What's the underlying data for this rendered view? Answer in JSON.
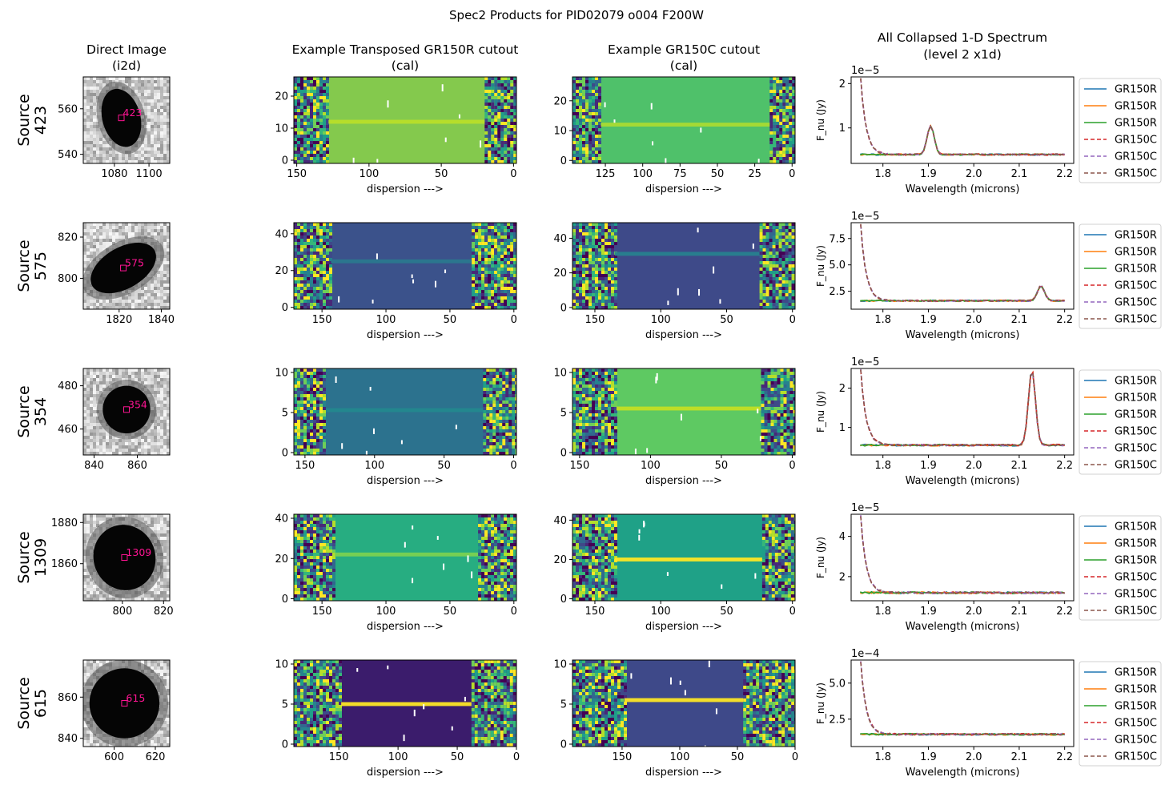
{
  "suptitle": "Spec2 Products for PID02079 o004 F200W",
  "column_titles": {
    "direct": [
      "Direct Image",
      "(i2d)"
    ],
    "row": [
      "Example Transposed GR150R cutout",
      "(cal)"
    ],
    "col": [
      "Example GR150C cutout",
      "(cal)"
    ],
    "spec": [
      "All Collapsed 1-D Spectrum",
      "(level 2 x1d)"
    ]
  },
  "colors": {
    "GR150R": [
      "#1f77b4",
      "#ff7f0e",
      "#2ca02c"
    ],
    "GR150C": [
      "#d62728",
      "#9467bd",
      "#8c564b"
    ],
    "marker": "#ff1493"
  },
  "legend_labels": [
    "GR150R",
    "GR150R",
    "GR150R",
    "GR150C",
    "GR150C",
    "GR150C"
  ],
  "xlabels": {
    "dispersion": "dispersion --->",
    "wavelength": "Wavelength (microns)"
  },
  "ylabel_spec": "F_nu (Jy)",
  "rows": [
    {
      "source_label": "Source 423",
      "source_line1": "Source",
      "source_line2": "423",
      "marker_label": "423",
      "direct": {
        "xlim": [
          1062,
          1112
        ],
        "ylim": [
          536,
          574
        ],
        "xticks": [
          1080,
          1100
        ],
        "yticks": [
          540,
          560
        ],
        "source_xy": [
          1084,
          556
        ],
        "blob": {
          "rx": 11,
          "ry": 13,
          "rot": -15
        }
      },
      "row_cutout": {
        "xlim": [
          152,
          -2
        ],
        "ylim": [
          -1,
          26
        ],
        "xticks": [
          150,
          100,
          50,
          0
        ],
        "yticks": [
          0,
          10,
          20
        ],
        "trace_y": 12,
        "edges": [
          128,
          20
        ],
        "bg": "#84c94d",
        "trace": "#b8de29"
      },
      "col_cutout": {
        "xlim": [
          147,
          -2
        ],
        "ylim": [
          -1,
          28
        ],
        "xticks": [
          125,
          100,
          75,
          50,
          25,
          0
        ],
        "yticks": [
          0,
          10,
          20
        ],
        "trace_y": 12,
        "edges": [
          128,
          15
        ],
        "bg": "#4fc16a",
        "trace": "#a9db33"
      },
      "spectrum": {
        "xlim": [
          1.73,
          2.22
        ],
        "ylim": [
          0.2,
          2.15
        ],
        "yticks": [
          1,
          2
        ],
        "exponent": "1e−5",
        "continuum": 0.4,
        "lines": [
          {
            "center": 1.905,
            "peak": 1.05
          }
        ]
      }
    },
    {
      "source_label": "Source 575",
      "source_line1": "Source",
      "source_line2": "575",
      "marker_label": "575",
      "direct": {
        "xlim": [
          1803,
          1844
        ],
        "ylim": [
          785,
          827
        ],
        "xticks": [
          1820,
          1840
        ],
        "yticks": [
          800,
          820
        ],
        "source_xy": [
          1822,
          805
        ],
        "blob": {
          "rx": 17,
          "ry": 10,
          "rot": -30
        }
      },
      "row_cutout": {
        "xlim": [
          172,
          -2
        ],
        "ylim": [
          -1,
          46
        ],
        "xticks": [
          150,
          100,
          50,
          0
        ],
        "yticks": [
          0,
          20,
          40
        ],
        "trace_y": 25,
        "edges": [
          143,
          33
        ],
        "bg": "#3b528b",
        "trace": "#2a788e"
      },
      "col_cutout": {
        "xlim": [
          167,
          -2
        ],
        "ylim": [
          -1,
          49
        ],
        "xticks": [
          150,
          100,
          50,
          0
        ],
        "yticks": [
          0,
          20,
          40
        ],
        "trace_y": 31,
        "edges": [
          135,
          25
        ],
        "bg": "#3e4a89",
        "trace": "#277f8e"
      },
      "spectrum": {
        "xlim": [
          1.73,
          2.22
        ],
        "ylim": [
          0.8,
          9.0
        ],
        "yticks": [
          2.5,
          5.0,
          7.5
        ],
        "exponent": "1e−5",
        "continuum": 1.6,
        "lines": [
          {
            "center": 2.148,
            "peak": 3.0
          }
        ]
      }
    },
    {
      "source_label": "Source 354",
      "source_line1": "Source",
      "source_line2": "354",
      "marker_label": "354",
      "direct": {
        "xlim": [
          835,
          875
        ],
        "ylim": [
          448,
          488
        ],
        "xticks": [
          840,
          860
        ],
        "yticks": [
          460,
          480
        ],
        "source_xy": [
          855,
          469
        ],
        "blob": {
          "rx": 11,
          "ry": 11,
          "rot": 0
        }
      },
      "row_cutout": {
        "xlim": [
          158,
          -2
        ],
        "ylim": [
          -0.3,
          10.5
        ],
        "xticks": [
          150,
          100,
          50,
          0
        ],
        "yticks": [
          0,
          5,
          10
        ],
        "trace_y": 5.3,
        "edges": [
          135,
          22
        ],
        "bg": "#2c728e",
        "trace": "#23888e"
      },
      "col_cutout": {
        "xlim": [
          155,
          -2
        ],
        "ylim": [
          -0.3,
          10.5
        ],
        "xticks": [
          150,
          100,
          50,
          0
        ],
        "yticks": [
          0,
          5,
          10
        ],
        "trace_y": 5.5,
        "edges": [
          124,
          22
        ],
        "bg": "#5ec962",
        "trace": "#c2df23"
      },
      "spectrum": {
        "xlim": [
          1.73,
          2.22
        ],
        "ylim": [
          0.3,
          2.5
        ],
        "yticks": [
          1,
          2
        ],
        "exponent": "1e−5",
        "continuum": 0.55,
        "lines": [
          {
            "center": 2.128,
            "peak": 2.45
          }
        ]
      }
    },
    {
      "source_label": "Source 1309",
      "source_line1": "Source",
      "source_line2": "1309",
      "marker_label": "1309",
      "direct": {
        "xlim": [
          781,
          823
        ],
        "ylim": [
          1842,
          1884
        ],
        "xticks": [
          800,
          820
        ],
        "yticks": [
          1860,
          1880
        ],
        "source_xy": [
          801,
          1863
        ],
        "blob": {
          "rx": 15,
          "ry": 16,
          "rot": -20
        }
      },
      "row_cutout": {
        "xlim": [
          172,
          -2
        ],
        "ylim": [
          -1,
          42
        ],
        "xticks": [
          150,
          100,
          50,
          0
        ],
        "yticks": [
          0,
          20,
          40
        ],
        "trace_y": 22,
        "edges": [
          140,
          28
        ],
        "bg": "#27ad81",
        "trace": "#7ad151"
      },
      "col_cutout": {
        "xlim": [
          167,
          -2
        ],
        "ylim": [
          -1,
          43
        ],
        "xticks": [
          150,
          100,
          50,
          0
        ],
        "yticks": [
          0,
          20,
          40
        ],
        "trace_y": 20,
        "edges": [
          135,
          23
        ],
        "bg": "#1fa187",
        "trace": "#fde725"
      },
      "spectrum": {
        "xlim": [
          1.73,
          2.22
        ],
        "ylim": [
          0.8,
          5.1
        ],
        "yticks": [
          2,
          4
        ],
        "exponent": "1e−5",
        "continuum": 1.2,
        "lines": []
      }
    },
    {
      "source_label": "Source 615",
      "source_line1": "Source",
      "source_line2": "615",
      "marker_label": "615",
      "direct": {
        "xlim": [
          585,
          627
        ],
        "ylim": [
          836,
          878
        ],
        "xticks": [
          600,
          620
        ],
        "yticks": [
          840,
          860
        ],
        "source_xy": [
          605,
          857
        ],
        "blob": {
          "rx": 17,
          "ry": 17,
          "rot": 0
        }
      },
      "row_cutout": {
        "xlim": [
          188,
          0
        ],
        "ylim": [
          -0.3,
          10.5
        ],
        "xticks": [
          150,
          100,
          50,
          0
        ],
        "yticks": [
          0,
          5,
          10
        ],
        "trace_y": 5,
        "edges": [
          148,
          38
        ],
        "bg": "#3b1c6c",
        "trace": "#fde725"
      },
      "col_cutout": {
        "xlim": [
          193,
          0
        ],
        "ylim": [
          -0.3,
          10.5
        ],
        "xticks": [
          150,
          100,
          50,
          0
        ],
        "yticks": [
          0,
          5,
          10
        ],
        "trace_y": 5.5,
        "edges": [
          148,
          45
        ],
        "bg": "#3e4989",
        "trace": "#fde725"
      },
      "spectrum": {
        "xlim": [
          1.73,
          2.22
        ],
        "ylim": [
          0.6,
          6.6
        ],
        "yticks": [
          2.5,
          5.0
        ],
        "exponent": "1e−4",
        "continuum": 1.45,
        "lines": []
      }
    }
  ],
  "chart_data": {
    "type": "line",
    "title": "All Collapsed 1-D Spectrum (level 2 x1d)",
    "xlabel": "Wavelength (microns)",
    "ylabel": "F_nu (Jy)",
    "xticks": [
      1.8,
      1.9,
      2.0,
      2.1,
      2.2
    ],
    "series_names": [
      "GR150R",
      "GR150R",
      "GR150R",
      "GR150C",
      "GR150C",
      "GR150C"
    ],
    "panels": [
      {
        "source": "423",
        "unit": "1e-5",
        "continuum": 0.4,
        "emission_line_um": 1.905,
        "emission_peak": 1.05,
        "ylim": [
          0.2,
          2.15
        ]
      },
      {
        "source": "575",
        "unit": "1e-5",
        "continuum": 1.6,
        "emission_line_um": 2.148,
        "emission_peak": 3.0,
        "ylim": [
          0.8,
          9.0
        ]
      },
      {
        "source": "354",
        "unit": "1e-5",
        "continuum": 0.55,
        "emission_line_um": 2.128,
        "emission_peak": 2.45,
        "ylim": [
          0.3,
          2.5
        ]
      },
      {
        "source": "1309",
        "unit": "1e-5",
        "continuum": 1.2,
        "emission_line_um": null,
        "emission_peak": null,
        "ylim": [
          0.8,
          5.1
        ]
      },
      {
        "source": "615",
        "unit": "1e-4",
        "continuum": 1.45,
        "emission_line_um": null,
        "emission_peak": null,
        "ylim": [
          0.6,
          6.6
        ]
      }
    ]
  }
}
